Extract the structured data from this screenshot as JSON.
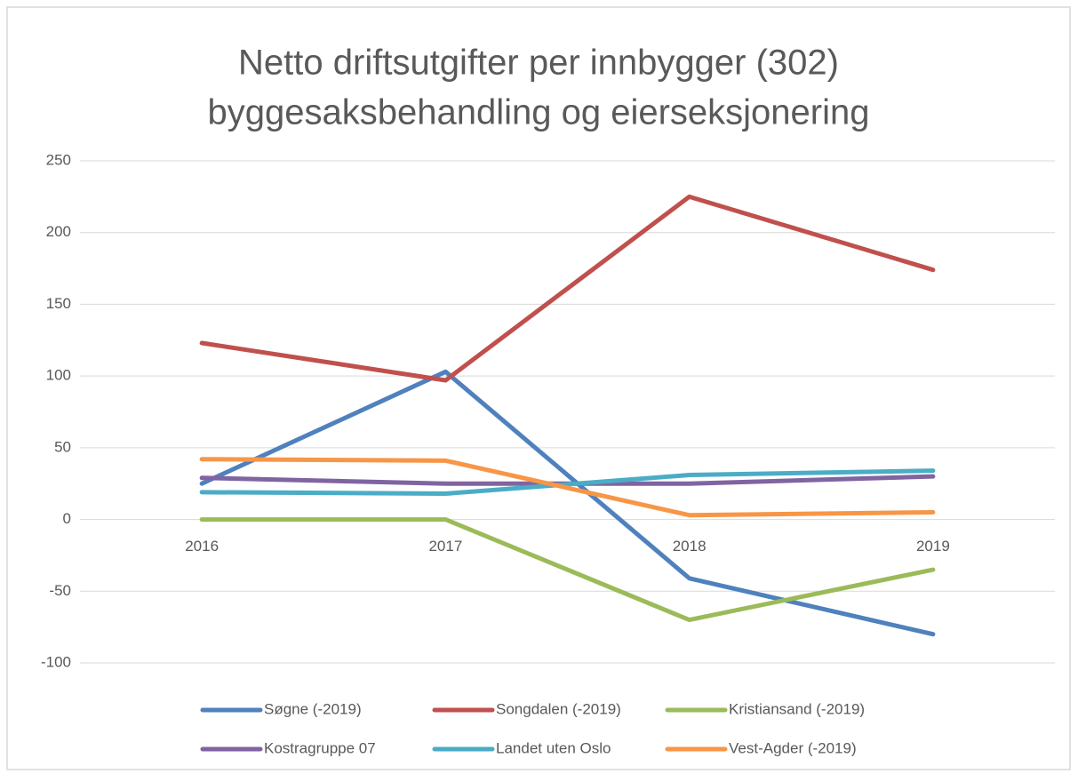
{
  "chart_data": {
    "type": "line",
    "title": [
      "Netto driftsutgifter per innbygger (302)",
      "byggesaksbehandling og eierseksjonering"
    ],
    "categories": [
      "2016",
      "2017",
      "2018",
      "2019"
    ],
    "series": [
      {
        "name": "Søgne (-2019)",
        "color": "#4f81bd",
        "values": [
          25,
          103,
          -41,
          -80
        ]
      },
      {
        "name": "Songdalen (-2019)",
        "color": "#c0504d",
        "values": [
          123,
          97,
          225,
          174
        ]
      },
      {
        "name": "Kristiansand (-2019)",
        "color": "#9bbb59",
        "values": [
          0,
          0,
          -70,
          -35
        ]
      },
      {
        "name": "Kostragruppe 07",
        "color": "#8064a2",
        "values": [
          29,
          25,
          25,
          30
        ]
      },
      {
        "name": "Landet uten Oslo",
        "color": "#4bacc6",
        "values": [
          19,
          18,
          31,
          34
        ]
      },
      {
        "name": "Vest-Agder (-2019)",
        "color": "#f79646",
        "values": [
          42,
          41,
          3,
          5
        ]
      }
    ],
    "ylim": [
      -100,
      250
    ],
    "yticks": [
      -100,
      -50,
      0,
      50,
      100,
      150,
      200,
      250
    ],
    "grid": true,
    "legend": "bottom"
  }
}
